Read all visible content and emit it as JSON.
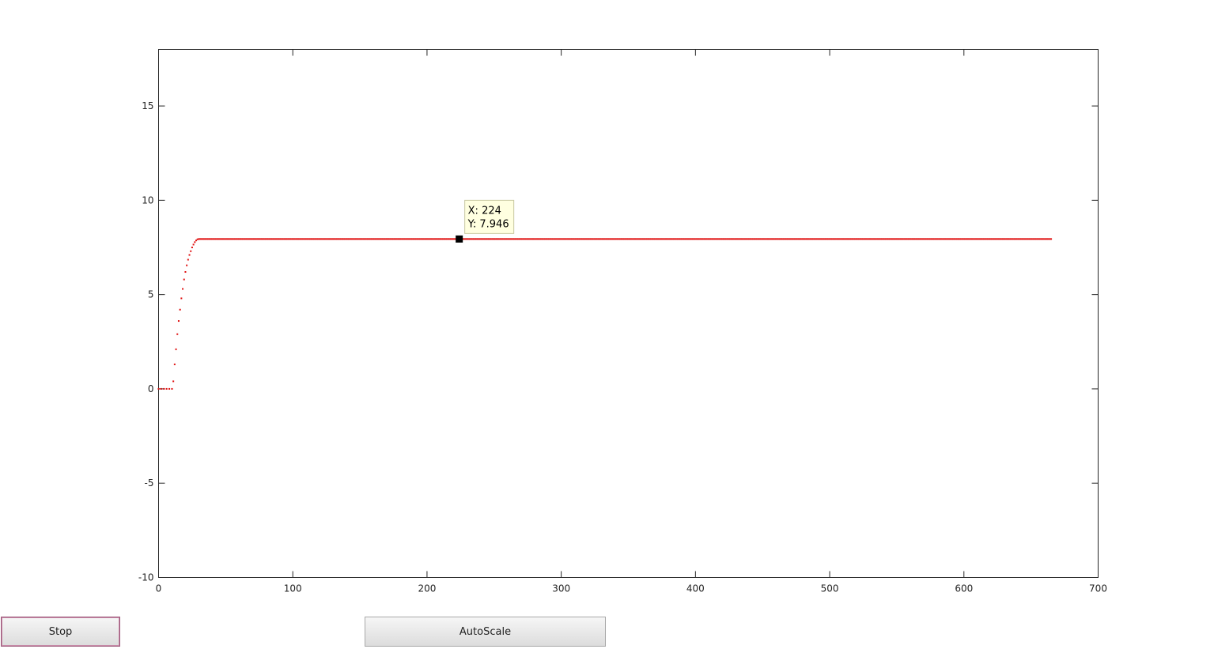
{
  "chart_data": {
    "type": "scatter",
    "title": "",
    "xlabel": "",
    "ylabel": "",
    "xlim": [
      0,
      700
    ],
    "ylim": [
      -10,
      18
    ],
    "xticks": [
      0,
      100,
      200,
      300,
      400,
      500,
      600,
      700
    ],
    "yticks": [
      -10,
      -5,
      0,
      5,
      10,
      15
    ],
    "grid": false,
    "marker_color": "#e01010",
    "series": [
      {
        "x_range": [
          0,
          665
        ],
        "description_points": [
          [
            0,
            0
          ],
          [
            2,
            0
          ],
          [
            4,
            0
          ],
          [
            6,
            0
          ],
          [
            8,
            0
          ],
          [
            10,
            0
          ],
          [
            11,
            0.4
          ],
          [
            12,
            1.3
          ],
          [
            13,
            2.1
          ],
          [
            14,
            2.9
          ],
          [
            15,
            3.6
          ],
          [
            16,
            4.2
          ],
          [
            17,
            4.8
          ],
          [
            18,
            5.3
          ],
          [
            19,
            5.8
          ],
          [
            20,
            6.2
          ],
          [
            21,
            6.55
          ],
          [
            22,
            6.85
          ],
          [
            23,
            7.1
          ],
          [
            24,
            7.3
          ],
          [
            25,
            7.5
          ],
          [
            26,
            7.65
          ],
          [
            27,
            7.78
          ],
          [
            28,
            7.87
          ],
          [
            29,
            7.93
          ],
          [
            30,
            7.946
          ]
        ],
        "steady_value": 7.946,
        "steady_start": 30,
        "steady_end": 665
      }
    ],
    "datatip": {
      "x": 224,
      "y": 7.946,
      "x_text": "X: 224",
      "y_text": "Y: 7.946",
      "box_color": "#ffffe0",
      "marker_color": "#000000"
    }
  },
  "buttons": {
    "stop_label": "Stop",
    "autoscale_label": "AutoScale"
  }
}
